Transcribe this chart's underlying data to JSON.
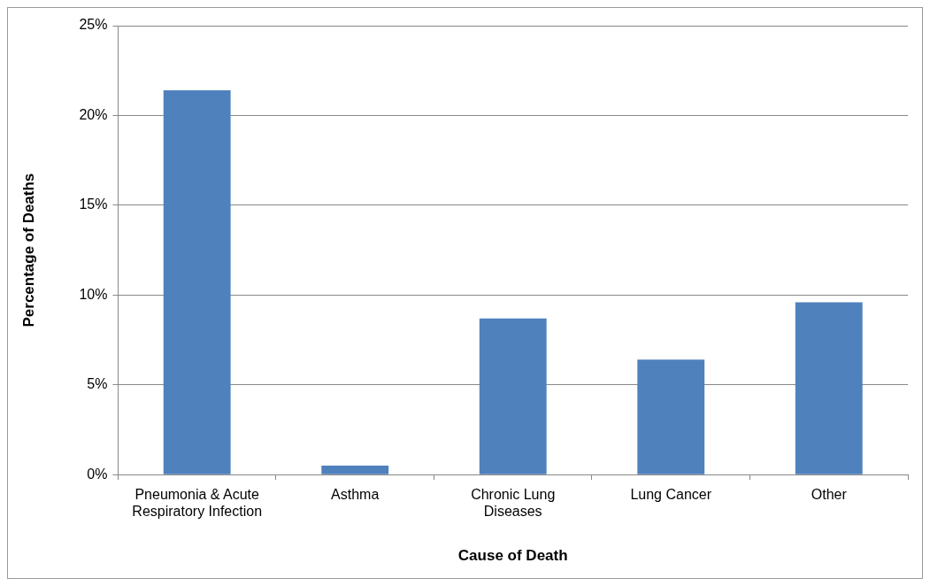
{
  "chart_data": {
    "type": "bar",
    "xlabel": "Cause of Death",
    "ylabel": "Percentage of Deaths",
    "categories": [
      "Pneumonia & Acute Respiratory Infection",
      "Asthma",
      "Chronic Lung Diseases",
      "Lung Cancer",
      "Other"
    ],
    "values": [
      21.4,
      0.5,
      8.7,
      6.4,
      9.6
    ],
    "color": "#4f81bd",
    "ylim": [
      0,
      25
    ],
    "yticks": [
      {
        "value": 0,
        "label": "0%"
      },
      {
        "value": 5,
        "label": "5%"
      },
      {
        "value": 10,
        "label": "10%"
      },
      {
        "value": 15,
        "label": "15%"
      },
      {
        "value": 20,
        "label": "20%"
      },
      {
        "value": 25,
        "label": "25%"
      }
    ],
    "grid": "y",
    "legend": false
  }
}
